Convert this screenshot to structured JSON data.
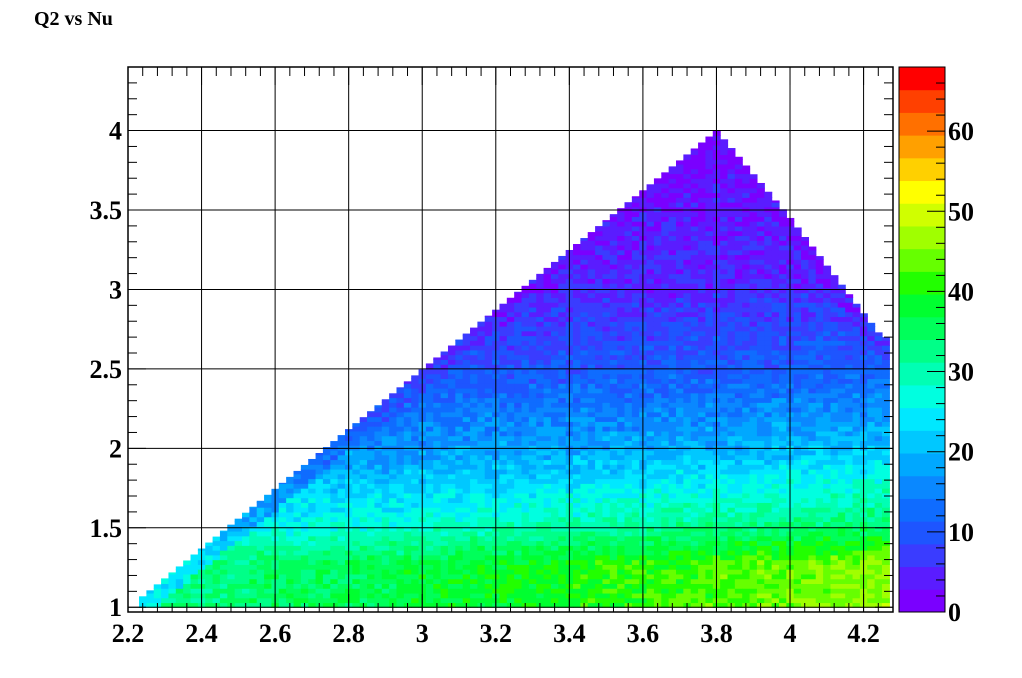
{
  "chart_data": {
    "type": "heatmap",
    "title": "Q2 vs Nu",
    "xlabel": "",
    "ylabel": "",
    "xlim": [
      2.2,
      4.28
    ],
    "ylim": [
      0.97,
      4.4
    ],
    "grid": true,
    "x_ticks": [
      2.2,
      2.4,
      2.6,
      2.8,
      3,
      3.2,
      3.4,
      3.6,
      3.8,
      4,
      4.2
    ],
    "x_tick_labels": [
      "2.2",
      "2.4",
      "2.6",
      "2.8",
      "3",
      "3.2",
      "3.4",
      "3.6",
      "3.8",
      "4",
      "4.2"
    ],
    "y_ticks": [
      1,
      1.5,
      2,
      2.5,
      3,
      3.5,
      4
    ],
    "y_tick_labels": [
      "1",
      "1.5",
      "2",
      "2.5",
      "3",
      "3.5",
      "4"
    ],
    "colorbar": {
      "range": [
        0,
        68
      ],
      "ticks": [
        0,
        10,
        20,
        30,
        40,
        50,
        60
      ],
      "tick_labels": [
        "0",
        "10",
        "20",
        "30",
        "40",
        "50",
        "60"
      ],
      "colors": [
        "#7a00ff",
        "#5a1cff",
        "#3a3cff",
        "#1e55ff",
        "#0f6cff",
        "#0a88ff",
        "#00a8ff",
        "#00c8ff",
        "#00e8ff",
        "#00ffe0",
        "#00ffb4",
        "#00ff88",
        "#00ff5a",
        "#00ff30",
        "#22ff00",
        "#66ff00",
        "#a0ff00",
        "#d0ff00",
        "#ffff00",
        "#ffd000",
        "#ffa000",
        "#ff7000",
        "#ff4000",
        "#ff0000"
      ]
    },
    "region": {
      "description_points": [
        [
          2.23,
          1.05
        ],
        [
          3.8,
          4.0
        ],
        [
          4.28,
          2.6
        ],
        [
          4.28,
          1.0
        ],
        [
          2.23,
          1.0
        ]
      ],
      "upper_edge": [
        [
          2.23,
          1.05
        ],
        [
          3.8,
          4.0
        ]
      ],
      "right_edge": [
        [
          3.8,
          4.0
        ],
        [
          4.0,
          3.45
        ],
        [
          4.15,
          3.0
        ],
        [
          4.25,
          2.7
        ]
      ]
    },
    "density_levels": [
      {
        "q2": 1.0,
        "value": 40
      },
      {
        "q2": 1.25,
        "value": 40
      },
      {
        "q2": 1.5,
        "value": 30
      },
      {
        "q2": 2.0,
        "value": 18
      },
      {
        "q2": 2.5,
        "value": 10
      },
      {
        "q2": 3.0,
        "value": 5
      },
      {
        "q2": 4.0,
        "value": 2
      }
    ]
  }
}
